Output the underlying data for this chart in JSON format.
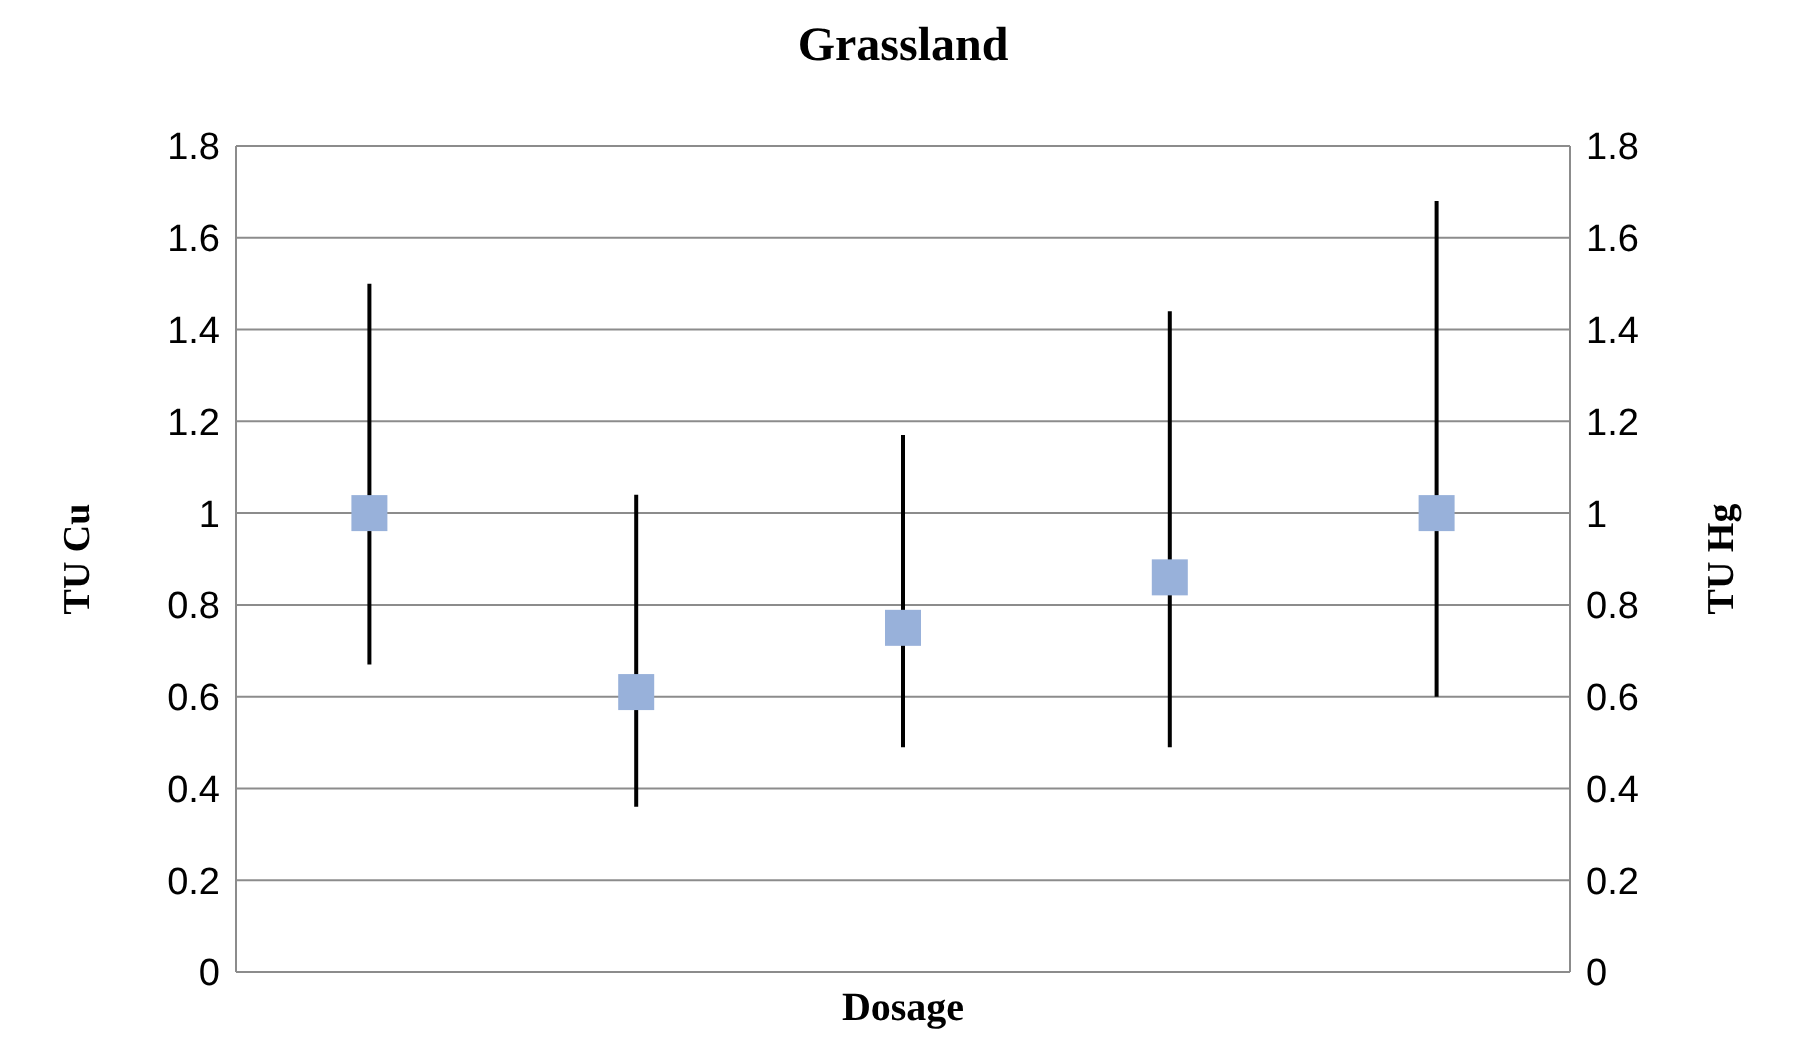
{
  "chart_data": {
    "type": "scatter",
    "title": "Grassland",
    "xlabel": "Dosage",
    "ylabel": "TU Cu",
    "y2label": "TU Hg",
    "categories": [
      null,
      null,
      null,
      null,
      null
    ],
    "series": [
      {
        "color": "#98b1da",
        "values": [
          1.0,
          0.61,
          0.75,
          0.86,
          1.0
        ],
        "errors": [
          [
            0.67,
            1.5
          ],
          [
            0.36,
            1.04
          ],
          [
            0.49,
            1.17
          ],
          [
            0.49,
            1.44
          ],
          [
            0.6,
            1.68
          ]
        ]
      }
    ],
    "ylim": [
      0,
      1.8
    ],
    "yticks": [
      0,
      0.2,
      0.4,
      0.6,
      0.8,
      1,
      1.2,
      1.4,
      1.6,
      1.8
    ],
    "y2lim": [
      0,
      1.8
    ],
    "y2ticks": [
      0,
      0.2,
      0.4,
      0.6,
      0.8,
      1,
      1.2,
      1.4,
      1.6,
      1.8
    ],
    "grid": "y",
    "marker": "square",
    "legend": false
  }
}
